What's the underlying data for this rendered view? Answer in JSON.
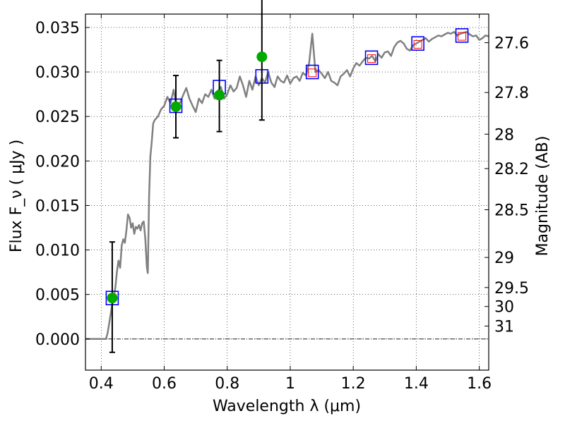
{
  "chart_data": {
    "type": "scatter",
    "xlabel": "Wavelength  λ (μm)",
    "ylabel": "Flux  F_ν  ( μJy )",
    "ylabel_right": "Magnitude (AB)",
    "xlim": [
      0.35,
      1.63
    ],
    "ylim": [
      -0.0035,
      0.0365
    ],
    "grid": true,
    "x_ticks": [
      0.4,
      0.6,
      0.8,
      1.0,
      1.2,
      1.4,
      1.6
    ],
    "x_tick_labels": [
      "0.4",
      "0.6",
      "0.8",
      "1",
      "1.2",
      "1.4",
      "1.6"
    ],
    "y_ticks": [
      0.0,
      0.005,
      0.01,
      0.015,
      0.02,
      0.025,
      0.03,
      0.035
    ],
    "y_tick_labels": [
      "0.000",
      "0.005",
      "0.010",
      "0.015",
      "0.020",
      "0.025",
      "0.030",
      "0.035"
    ],
    "right_ticks": [
      {
        "label": "27.6",
        "flux": 0.03329
      },
      {
        "label": "27.8",
        "flux": 0.02769
      },
      {
        "label": "28",
        "flux": 0.02301
      },
      {
        "label": "28.2",
        "flux": 0.01914
      },
      {
        "label": "28.5",
        "flux": 0.01452
      },
      {
        "label": "29",
        "flux": 0.00916
      },
      {
        "label": "29.5",
        "flux": 0.00578
      },
      {
        "label": "30",
        "flux": 0.00365
      },
      {
        "label": "31",
        "flux": 0.00145
      }
    ],
    "series": [
      {
        "kind": "line",
        "color": "#808080",
        "x": [
          0.35,
          0.4,
          0.415,
          0.42,
          0.425,
          0.43,
          0.435,
          0.44,
          0.445,
          0.45,
          0.455,
          0.46,
          0.465,
          0.47,
          0.475,
          0.48,
          0.485,
          0.49,
          0.495,
          0.5,
          0.505,
          0.51,
          0.515,
          0.52,
          0.525,
          0.53,
          0.535,
          0.54,
          0.545,
          0.548,
          0.552,
          0.556,
          0.56,
          0.565,
          0.57,
          0.575,
          0.58,
          0.59,
          0.6,
          0.61,
          0.62,
          0.63,
          0.64,
          0.65,
          0.66,
          0.67,
          0.68,
          0.69,
          0.7,
          0.71,
          0.72,
          0.73,
          0.74,
          0.75,
          0.76,
          0.77,
          0.78,
          0.79,
          0.8,
          0.81,
          0.82,
          0.83,
          0.84,
          0.85,
          0.86,
          0.87,
          0.88,
          0.89,
          0.9,
          0.91,
          0.92,
          0.93,
          0.94,
          0.95,
          0.96,
          0.97,
          0.98,
          0.99,
          1.0,
          1.01,
          1.02,
          1.03,
          1.04,
          1.05,
          1.06,
          1.07,
          1.08,
          1.09,
          1.1,
          1.11,
          1.12,
          1.13,
          1.14,
          1.15,
          1.16,
          1.17,
          1.18,
          1.19,
          1.2,
          1.21,
          1.22,
          1.23,
          1.24,
          1.25,
          1.26,
          1.27,
          1.28,
          1.29,
          1.3,
          1.31,
          1.32,
          1.33,
          1.34,
          1.35,
          1.36,
          1.37,
          1.38,
          1.39,
          1.4,
          1.41,
          1.42,
          1.43,
          1.44,
          1.45,
          1.46,
          1.47,
          1.48,
          1.49,
          1.5,
          1.51,
          1.52,
          1.53,
          1.54,
          1.55,
          1.56,
          1.57,
          1.58,
          1.59,
          1.6,
          1.61,
          1.62,
          1.63
        ],
        "y": [
          0.0,
          0.0,
          0.0,
          0.0006,
          0.0017,
          0.0028,
          0.0039,
          0.0047,
          0.0058,
          0.0076,
          0.0088,
          0.008,
          0.0105,
          0.0112,
          0.0108,
          0.0122,
          0.014,
          0.0136,
          0.0125,
          0.013,
          0.0118,
          0.0126,
          0.0124,
          0.0128,
          0.0122,
          0.013,
          0.0132,
          0.0112,
          0.008,
          0.0074,
          0.016,
          0.0205,
          0.022,
          0.0242,
          0.0246,
          0.0248,
          0.025,
          0.0258,
          0.0262,
          0.0272,
          0.0265,
          0.028,
          0.0258,
          0.0265,
          0.0274,
          0.0282,
          0.027,
          0.0262,
          0.0255,
          0.027,
          0.0265,
          0.0275,
          0.0272,
          0.028,
          0.027,
          0.0278,
          0.0283,
          0.027,
          0.0275,
          0.0285,
          0.0278,
          0.0282,
          0.0295,
          0.0285,
          0.0272,
          0.029,
          0.028,
          0.0295,
          0.0285,
          0.0293,
          0.0288,
          0.03,
          0.0288,
          0.0283,
          0.0295,
          0.029,
          0.0288,
          0.0296,
          0.0287,
          0.0293,
          0.0295,
          0.029,
          0.0299,
          0.0296,
          0.031,
          0.0343,
          0.03,
          0.0302,
          0.0298,
          0.0293,
          0.03,
          0.029,
          0.0288,
          0.0285,
          0.0295,
          0.0298,
          0.0302,
          0.0295,
          0.0304,
          0.031,
          0.0307,
          0.0312,
          0.0316,
          0.0315,
          0.0318,
          0.0312,
          0.032,
          0.0316,
          0.0322,
          0.0323,
          0.0318,
          0.0328,
          0.0333,
          0.0335,
          0.0332,
          0.0326,
          0.0324,
          0.033,
          0.0332,
          0.0334,
          0.0336,
          0.0338,
          0.0334,
          0.0337,
          0.0339,
          0.0341,
          0.034,
          0.0342,
          0.0344,
          0.0343,
          0.0345,
          0.0341,
          0.0343,
          0.0344,
          0.0345,
          0.0342,
          0.034,
          0.0341,
          0.0336,
          0.0338,
          0.0341,
          0.034
        ]
      },
      {
        "kind": "errorbar",
        "color": "#00aa00",
        "marker": "circle",
        "x": [
          0.435,
          0.637,
          0.775,
          0.91
        ],
        "y": [
          0.0046,
          0.0261,
          0.0274,
          0.0317
        ],
        "yerr_low": [
          0.0061,
          0.0035,
          0.0041,
          0.0071
        ],
        "yerr_high": [
          0.0063,
          0.0035,
          0.0039,
          0.0084
        ]
      },
      {
        "kind": "scatter",
        "color": "#0000ff",
        "marker": "square",
        "x": [
          0.435,
          0.637,
          0.775,
          0.91,
          1.07,
          1.258,
          1.405,
          1.545
        ],
        "y": [
          0.0046,
          0.0262,
          0.0283,
          0.0295,
          0.03,
          0.0316,
          0.0332,
          0.0341
        ]
      },
      {
        "kind": "scatter",
        "color": "#ff0000",
        "marker": "square",
        "x": [
          1.07,
          1.258,
          1.405,
          1.545
        ],
        "y": [
          0.0299,
          0.0315,
          0.0331,
          0.034
        ]
      }
    ]
  }
}
